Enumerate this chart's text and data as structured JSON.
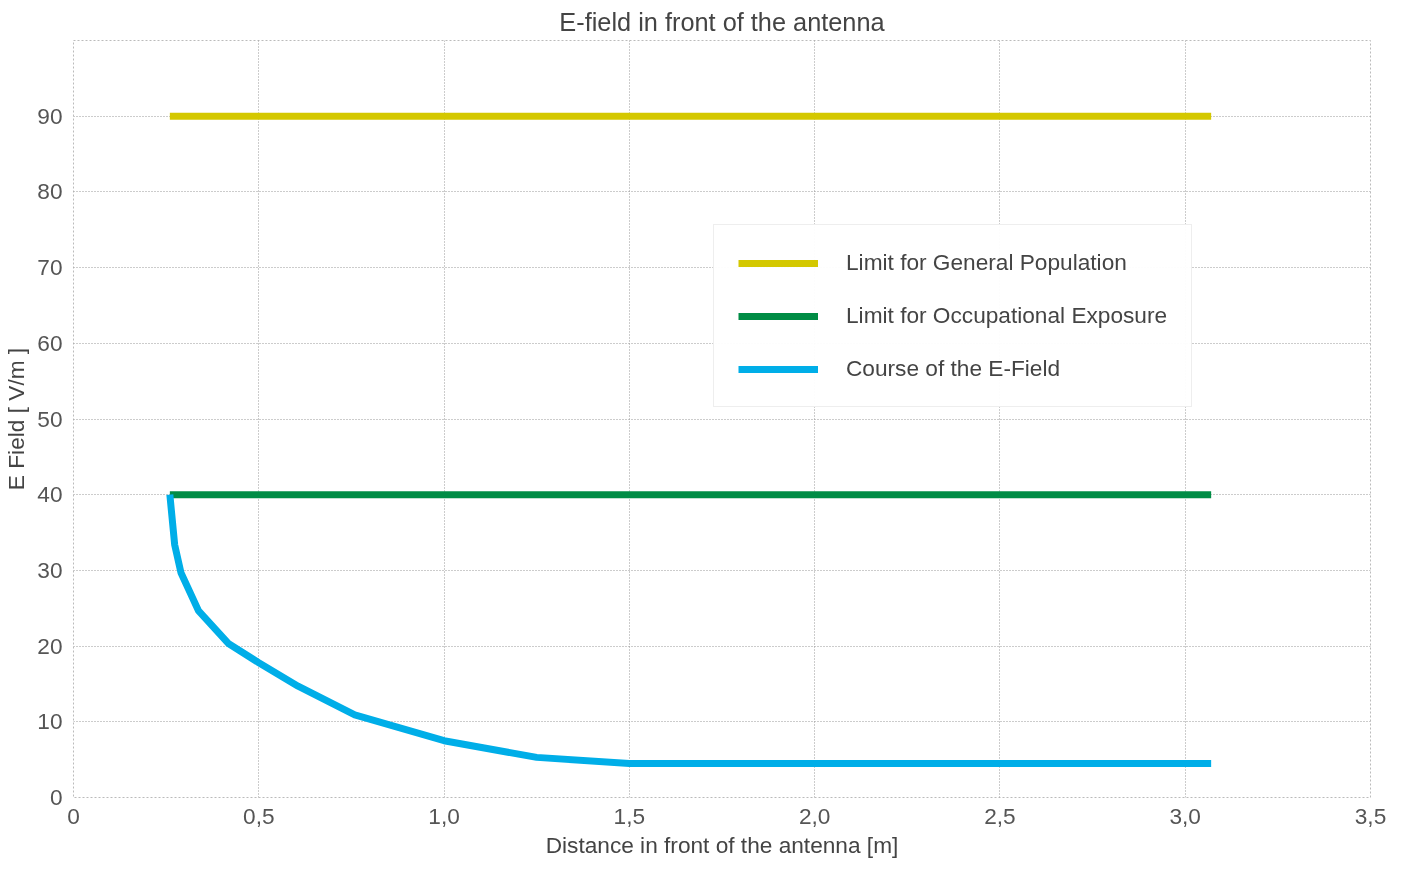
{
  "chart_data": {
    "type": "line",
    "title": "E-field in front of the antenna",
    "xlabel": "Distance in front of the antenna [m]",
    "ylabel": "E Field [ V/m ]",
    "xlim": [
      0,
      3.5
    ],
    "ylim": [
      0,
      100
    ],
    "xticks": [
      0,
      {
        "value": 0.5,
        "label": "0,5"
      },
      {
        "value": 1.0,
        "label": "1,0"
      },
      {
        "value": 1.5,
        "label": "1,5"
      },
      {
        "value": 2.0,
        "label": "2,0"
      },
      {
        "value": 2.5,
        "label": "2,5"
      },
      {
        "value": 3.0,
        "label": "3,0"
      },
      {
        "value": 3.5,
        "label": "3,5"
      }
    ],
    "yticks": [
      0,
      10,
      20,
      30,
      40,
      50,
      60,
      70,
      80,
      90,
      {
        "value": 100,
        "label": null
      }
    ],
    "grid": true,
    "legend": "top right",
    "series": [
      {
        "name": "Limit for General Population",
        "color": "#d4c800",
        "x": [
          0.26,
          3.07
        ],
        "values": [
          90,
          90
        ]
      },
      {
        "name": "Limit for Occupational Exposure",
        "color": "#008c45",
        "x": [
          0.26,
          3.07
        ],
        "values": [
          40,
          40
        ]
      },
      {
        "name": "Course of the E-Field",
        "color": "#00aee8",
        "x": [
          0.26,
          0.273,
          0.29,
          0.337,
          0.419,
          0.5,
          0.606,
          0.759,
          1.0,
          1.25,
          1.5,
          3.07
        ],
        "values": [
          40,
          33.4,
          29.7,
          24.7,
          20.3,
          17.8,
          14.7,
          10.9,
          7.5,
          5.3,
          4.5,
          4.5
        ]
      }
    ]
  }
}
